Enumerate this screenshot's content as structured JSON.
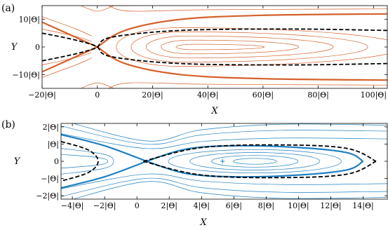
{
  "colors": {
    "panel_a_curve": "#d4612b",
    "panel_b_curve": "#1f7fc0",
    "dashed": "#000000"
  },
  "chart_data": [
    {
      "type": "line",
      "panel_label": "(a)",
      "xlabel": "X",
      "ylabel": "Y",
      "xlim": [
        -20,
        105
      ],
      "ylim": [
        -15,
        15
      ],
      "unit_label": "|Θ|",
      "x_ticks": [
        -20,
        0,
        20,
        40,
        60,
        80,
        100
      ],
      "x_tick_labels": [
        "−20|Θ|",
        "0",
        "20|Θ|",
        "40|Θ|",
        "60|Θ|",
        "80|Θ|",
        "100|Θ|"
      ],
      "y_ticks": [
        10,
        0,
        -10
      ],
      "y_tick_labels": [
        "10|Θ|",
        "0",
        "−10|Θ|"
      ],
      "series": [
        {
          "style": "thick-solid",
          "x": [
            0,
            10,
            30,
            60,
            105
          ],
          "y": [
            0,
            6,
            10,
            11.5,
            12
          ]
        },
        {
          "style": "thick-solid",
          "x": [
            0,
            10,
            30,
            60,
            105
          ],
          "y": [
            0,
            -6,
            -10,
            -11.5,
            -12
          ]
        },
        {
          "style": "thick-solid",
          "x": [
            -20,
            -10,
            0
          ],
          "y": [
            -9,
            -4.5,
            0
          ]
        },
        {
          "style": "thick-solid",
          "x": [
            -20,
            -10,
            0
          ],
          "y": [
            9,
            4.5,
            0
          ]
        },
        {
          "style": "dashed",
          "x": [
            -20,
            -10,
            -3,
            0,
            5,
            30,
            70,
            105
          ],
          "y": [
            5,
            3,
            1.2,
            0,
            -3.5,
            -6,
            -6.5,
            -6
          ]
        },
        {
          "style": "dashed",
          "x": [
            -20,
            -10,
            -3,
            0,
            5,
            30,
            70,
            105
          ],
          "y": [
            -5,
            -3,
            -1.2,
            0,
            3.5,
            6,
            6.5,
            6
          ]
        }
      ]
    },
    {
      "type": "line",
      "panel_label": "(b)",
      "xlabel": "X",
      "ylabel": "Y",
      "xlim": [
        -4.7,
        15.5
      ],
      "ylim": [
        -2.2,
        2.2
      ],
      "unit_label": "|Θ|",
      "x_ticks": [
        -4,
        -2,
        0,
        2,
        4,
        6,
        8,
        10,
        12,
        14
      ],
      "x_tick_labels": [
        "−4|Θ|",
        "−2|Θ|",
        "0",
        "2|Θ|",
        "4|Θ|",
        "6|Θ|",
        "8|Θ|",
        "10|Θ|",
        "12|Θ|",
        "14|Θ|"
      ],
      "y_ticks": [
        2,
        1,
        0,
        -1,
        -2
      ],
      "y_tick_labels": [
        "2|Θ|",
        "|Θ|",
        "0",
        "−|Θ|",
        "−2|Θ|"
      ],
      "series": [
        {
          "style": "thick-solid",
          "x": [
            0.6,
            3,
            6,
            10,
            13,
            14
          ],
          "y": [
            0,
            0.7,
            0.9,
            0.8,
            0.5,
            0
          ]
        },
        {
          "style": "thick-solid",
          "x": [
            0.6,
            3,
            6,
            10,
            13,
            14
          ],
          "y": [
            0,
            -0.7,
            -0.9,
            -0.8,
            -0.5,
            0
          ]
        },
        {
          "style": "thick-solid",
          "x": [
            -4.7,
            -2,
            0.6
          ],
          "y": [
            1.55,
            0.9,
            0
          ]
        },
        {
          "style": "thick-solid",
          "x": [
            -4.7,
            -2,
            0.6
          ],
          "y": [
            -1.55,
            -0.9,
            0
          ]
        },
        {
          "style": "dashed",
          "x": [
            0.4,
            4,
            9,
            13,
            14.8
          ],
          "y": [
            0,
            0.8,
            0.95,
            0.75,
            0
          ]
        },
        {
          "style": "dashed",
          "x": [
            0.4,
            4,
            9,
            13,
            14.8
          ],
          "y": [
            0,
            -0.8,
            -0.95,
            -0.75,
            0
          ]
        },
        {
          "style": "dashed",
          "x": [
            -4.7,
            -3,
            -2.4,
            -3,
            -4.7
          ],
          "y": [
            1.15,
            0.65,
            0,
            -0.65,
            -1.15
          ]
        }
      ],
      "center_marker": {
        "x": 5.3,
        "y": 0
      }
    }
  ]
}
